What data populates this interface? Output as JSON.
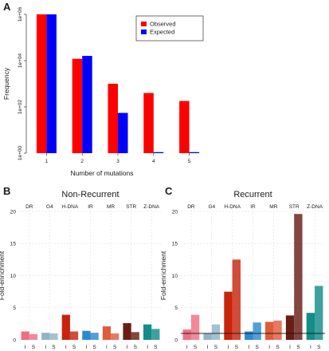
{
  "labels": {
    "A": "A",
    "B": "B",
    "C": "C"
  },
  "chart_data": [
    {
      "type": "bar",
      "categories": [
        "1",
        "2",
        "3",
        "4",
        "5"
      ],
      "xlabel": "Number of mutations",
      "ylabel": "Frequency",
      "yscale": "log10",
      "ylim": [
        1,
        1000000
      ],
      "yticks": [
        1,
        100,
        10000,
        1000000
      ],
      "ytick_labels": [
        "1e+00",
        "1e+02",
        "1e+04",
        "1e+06"
      ],
      "legend_position": "top-right",
      "series": [
        {
          "name": "Observed",
          "color": "#ff0000",
          "values": [
            1000000,
            12000,
            1000,
            400,
            180
          ]
        },
        {
          "name": "Expected",
          "color": "#0000ff",
          "values": [
            1000000,
            16000,
            55,
            1,
            1
          ]
        }
      ]
    },
    {
      "type": "bar",
      "title": "Non-Recurrent",
      "ylabel": "Fold-enrichment",
      "ylim": [
        0,
        20
      ],
      "yticks": [
        0,
        5,
        10,
        15,
        20
      ],
      "grid": true,
      "groups": [
        "DR",
        "G4",
        "H-DNA",
        "IR",
        "MR",
        "STR",
        "Z-DNA"
      ],
      "bar_labels": [
        "I",
        "S"
      ],
      "series": [
        {
          "name": "I",
          "values": [
            1.3,
            1.1,
            3.9,
            1.4,
            2.1,
            2.6,
            2.4
          ]
        },
        {
          "name": "S",
          "values": [
            0.9,
            1.0,
            1.3,
            1.1,
            1.0,
            1.2,
            1.7
          ]
        }
      ],
      "colors": {
        "I": [
          "#ef6f82",
          "#8db5c7",
          "#c8240c",
          "#2a8ad1",
          "#e05c3c",
          "#6a1d15",
          "#148c88"
        ],
        "S": [
          "#ef6f82",
          "#8db5c7",
          "#c8240c",
          "#2a8ad1",
          "#e05c3c",
          "#6a1d15",
          "#148c88"
        ]
      }
    },
    {
      "type": "bar",
      "title": "Recurrent",
      "ylabel": "Fold-enrichment",
      "ylim": [
        0,
        20
      ],
      "yticks": [
        0,
        5,
        10,
        15,
        20
      ],
      "grid": true,
      "reference_line": 1,
      "groups": [
        "DR",
        "G4",
        "H-DNA",
        "IR",
        "MR",
        "STR",
        "Z-DNA"
      ],
      "bar_labels": [
        "I",
        "S"
      ],
      "series": [
        {
          "name": "I",
          "values": [
            1.6,
            1.0,
            7.5,
            1.3,
            2.8,
            3.8,
            4.2
          ]
        },
        {
          "name": "S",
          "values": [
            3.9,
            2.4,
            12.5,
            2.7,
            3.0,
            19.6,
            8.4
          ]
        }
      ],
      "colors": {
        "I": [
          "#ef6f82",
          "#8db5c7",
          "#c8240c",
          "#2a8ad1",
          "#e05c3c",
          "#6a1d15",
          "#148c88"
        ],
        "S": [
          "#ef6f82",
          "#8db5c7",
          "#c8240c",
          "#2a8ad1",
          "#e05c3c",
          "#6a1d15",
          "#148c88"
        ]
      }
    }
  ]
}
